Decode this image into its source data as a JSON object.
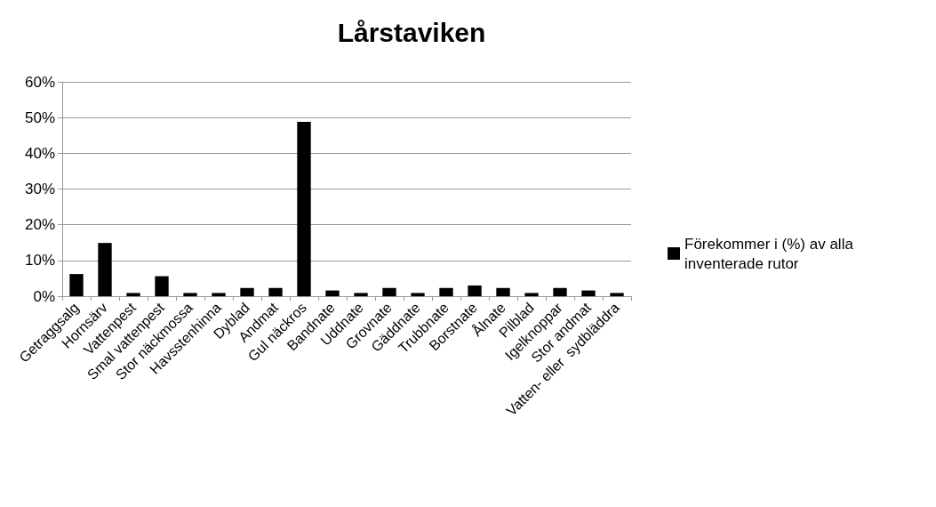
{
  "chart_data": {
    "type": "bar",
    "title": "Lårstaviken",
    "categories": [
      "Getraggsalg",
      "Hornsärv",
      "Vattenpest",
      "Smal vattenpest",
      "Stor näckmossa",
      "Havsstenhinna",
      "Dyblad",
      "Andmat",
      "Gul näckros",
      "Bandnate",
      "Uddnate",
      "Grovnate",
      "Gäddnate",
      "Trubbnate",
      "Borstnate",
      "Ålnate",
      "Pilblad",
      "Igelknoppar",
      "Stor andmat",
      "Vatten- eller  sydbläddra"
    ],
    "series": [
      {
        "name": "Förekommer i (%) av alla inventerade rutor",
        "color": "#000000",
        "values": [
          6.2,
          14.9,
          0.9,
          5.6,
          0.9,
          0.9,
          2.3,
          2.3,
          48.8,
          1.6,
          0.9,
          2.3,
          0.9,
          2.3,
          3.0,
          2.3,
          0.9,
          2.3,
          1.6,
          0.9
        ]
      }
    ],
    "ylim": [
      0,
      60
    ],
    "yticks": [
      {
        "value": 0,
        "label": "0%"
      },
      {
        "value": 10,
        "label": "10%"
      },
      {
        "value": 20,
        "label": "20%"
      },
      {
        "value": 30,
        "label": "30%"
      },
      {
        "value": 40,
        "label": "40%"
      },
      {
        "value": 50,
        "label": "50%"
      },
      {
        "value": 60,
        "label": "60%"
      }
    ],
    "grid": "y",
    "legend": "right"
  }
}
